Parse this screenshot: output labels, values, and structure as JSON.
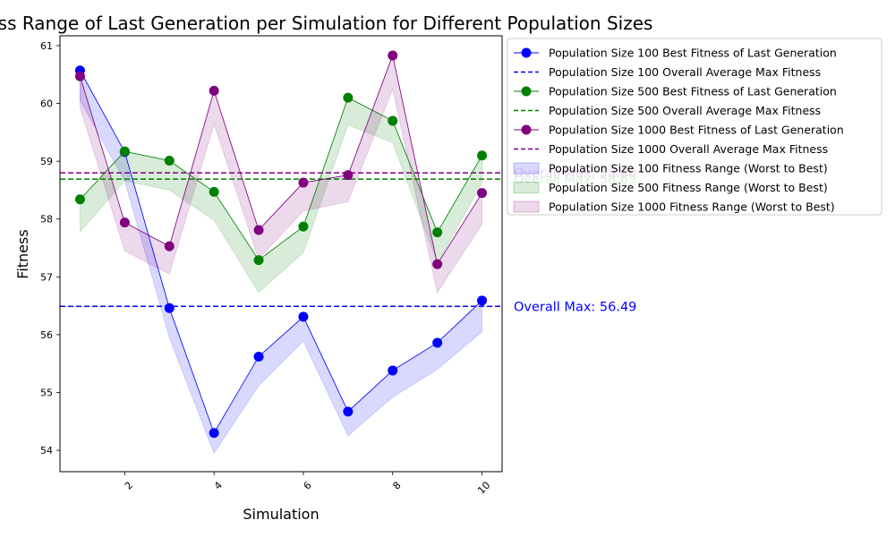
{
  "chart_data": {
    "type": "line",
    "title": "Best Fitness Range of Last Generation per Simulation for Different Population Sizes",
    "xlabel": "Simulation",
    "ylabel": "Fitness",
    "x": [
      1,
      2,
      3,
      4,
      5,
      6,
      7,
      8,
      9,
      10
    ],
    "xlim": [
      0.55,
      10.45
    ],
    "ylim": [
      53.63,
      61.17
    ],
    "x_ticks": [
      2,
      4,
      6,
      8,
      10
    ],
    "y_ticks": [
      54,
      55,
      56,
      57,
      58,
      59,
      60,
      61
    ],
    "series": [
      {
        "name": "Population Size 100 Best Fitness of Last Generation",
        "color": "#0000ff",
        "best": [
          60.57,
          59.16,
          56.46,
          54.3,
          55.62,
          56.31,
          54.67,
          55.38,
          55.86,
          56.59
        ],
        "worst": [
          60.05,
          58.66,
          55.95,
          53.95,
          55.12,
          55.89,
          54.25,
          54.92,
          55.4,
          56.05
        ],
        "avg_max_name": "Population Size 100 Overall Average Max Fitness",
        "avg_max": 56.49,
        "range_name": "Population Size 100 Fitness Range (Worst to Best)",
        "annotation": "Overall Max: 56.49"
      },
      {
        "name": "Population Size 500 Best Fitness of Last Generation",
        "color": "#008000",
        "best": [
          58.34,
          59.17,
          59.01,
          58.47,
          57.29,
          57.87,
          60.1,
          59.7,
          57.77,
          59.1
        ],
        "worst": [
          57.78,
          58.66,
          58.5,
          57.98,
          56.73,
          57.42,
          59.63,
          59.32,
          57.24,
          58.62
        ],
        "avg_max_name": "Population Size 500 Overall Average Max Fitness",
        "avg_max": 58.69,
        "range_name": "Population Size 500 Fitness Range (Worst to Best)",
        "annotation": "Overall Max: 58.69"
      },
      {
        "name": "Population Size 1000 Best Fitness of Last Generation",
        "color": "#800080",
        "best": [
          60.47,
          57.94,
          57.53,
          60.22,
          57.81,
          58.63,
          58.76,
          60.83,
          57.22,
          58.45
        ],
        "worst": [
          59.93,
          57.45,
          57.05,
          59.64,
          57.31,
          58.14,
          58.3,
          60.25,
          56.73,
          57.91
        ],
        "avg_max_name": "Population Size 1000 Overall Average Max Fitness",
        "avg_max": 58.8,
        "range_name": "Population Size 1000 Fitness Range (Worst to Best)",
        "annotation": "Overall Max: 58.80"
      }
    ],
    "legend_position": "upper left outside"
  }
}
